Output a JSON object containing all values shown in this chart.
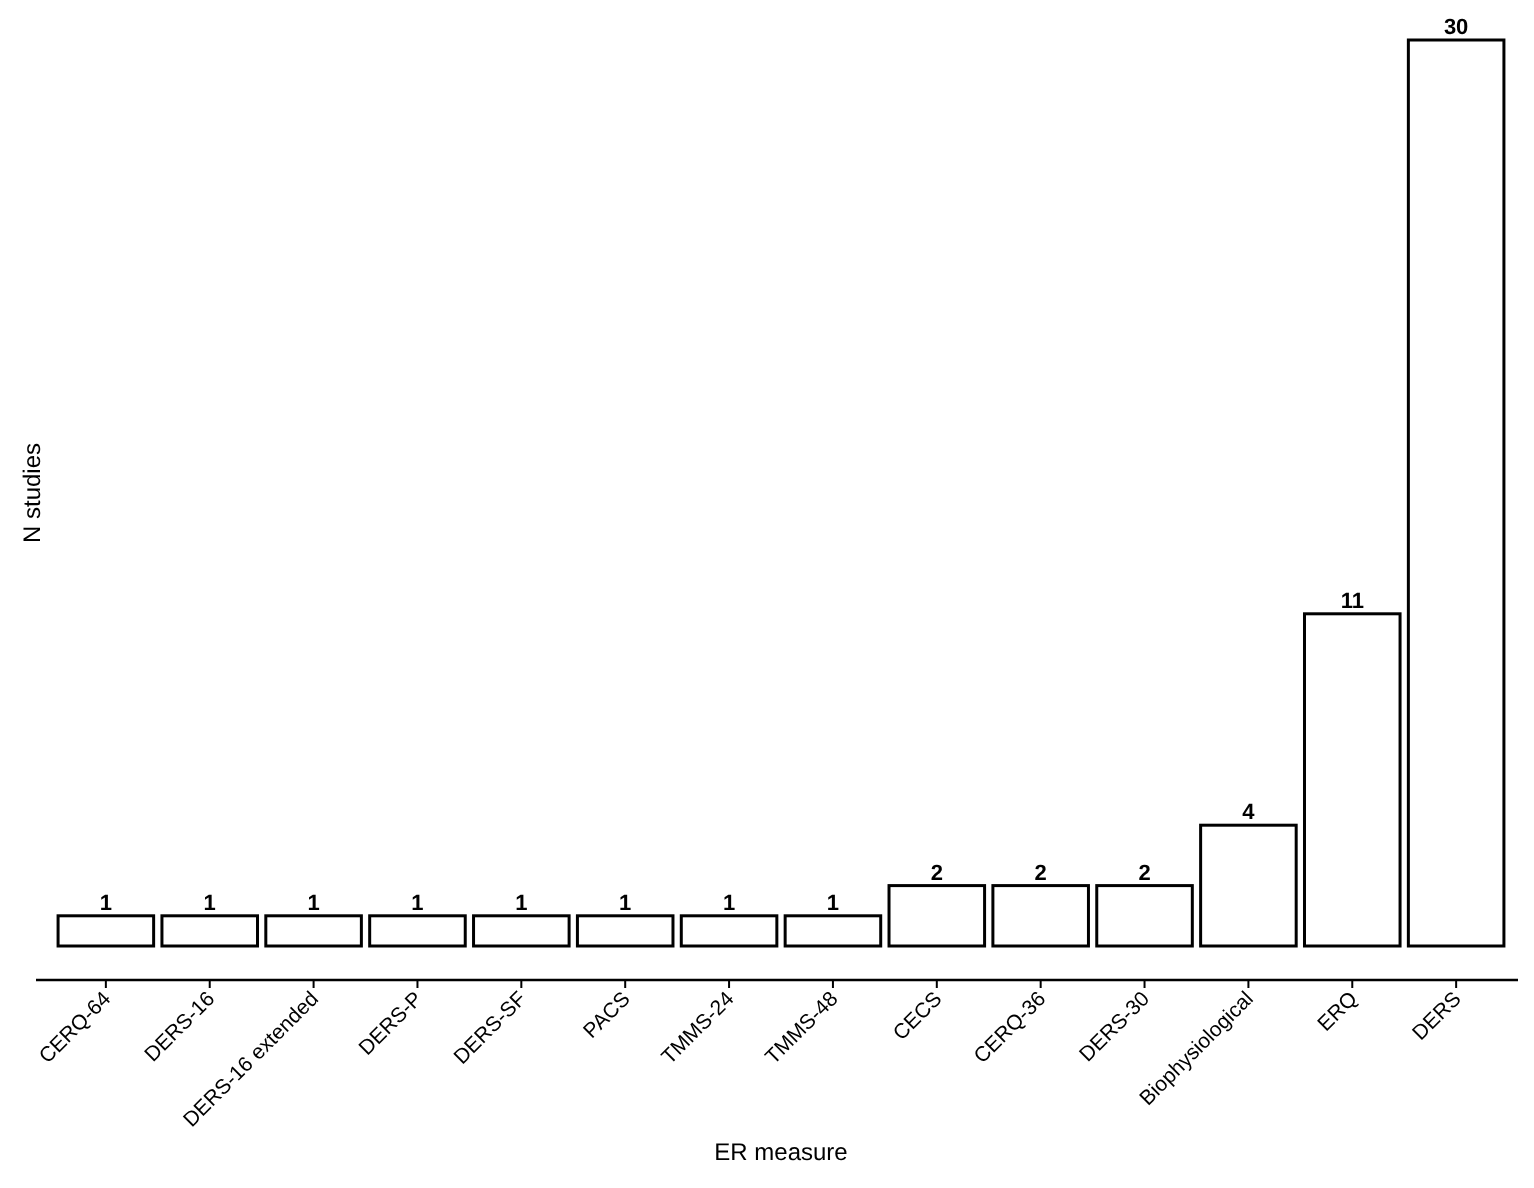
{
  "chart_data": {
    "type": "bar",
    "xlabel": "ER measure",
    "ylabel": "N studies",
    "categories": [
      "CERQ-64",
      "DERS-16",
      "DERS-16 extended",
      "DERS-P",
      "DERS-SF",
      "PACS",
      "TMMS-24",
      "TMMS-48",
      "CECS",
      "CERQ-36",
      "DERS-30",
      "Biophysiological",
      "ERQ",
      "DERS"
    ],
    "values": [
      1,
      1,
      1,
      1,
      1,
      1,
      1,
      1,
      2,
      2,
      2,
      4,
      11,
      30
    ],
    "color": "#ffffff",
    "data_labels": true,
    "grid": false,
    "tick_labels": "x"
  }
}
